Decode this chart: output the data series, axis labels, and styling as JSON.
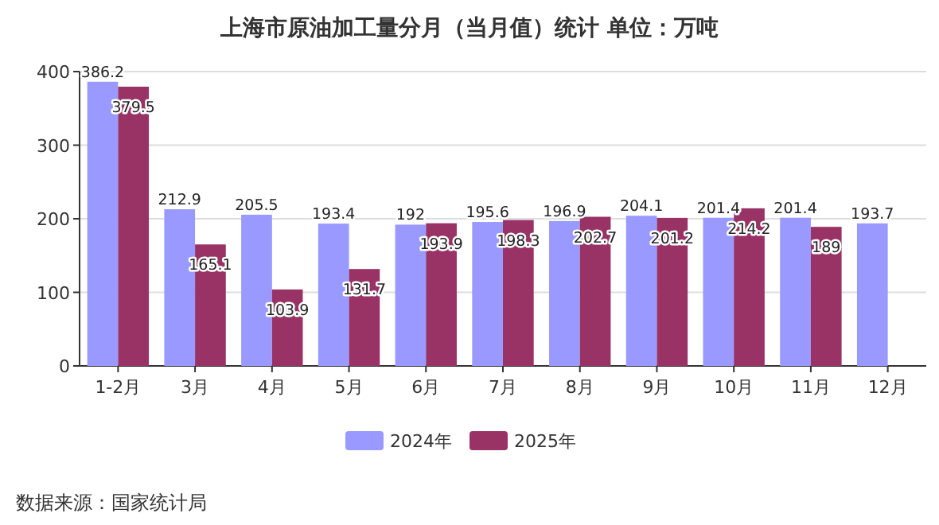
{
  "chart_data": {
    "type": "bar",
    "title": "上海市原油加工量分月（当月值）统计 单位：万吨",
    "categories": [
      "1-2月",
      "3月",
      "4月",
      "5月",
      "6月",
      "7月",
      "8月",
      "9月",
      "10月",
      "11月",
      "12月"
    ],
    "series": [
      {
        "name": "2024年",
        "color": "#9999ff",
        "values": [
          386.2,
          212.9,
          205.5,
          193.4,
          192,
          195.6,
          196.9,
          204.1,
          201.4,
          201.4,
          193.7
        ]
      },
      {
        "name": "2025年",
        "color": "#993366",
        "values": [
          379.5,
          165.1,
          103.9,
          131.7,
          193.9,
          198.3,
          202.7,
          201.2,
          214.2,
          189,
          null
        ]
      }
    ],
    "ylim": [
      0,
      400
    ],
    "yticks": [
      0,
      100,
      200,
      300,
      400
    ],
    "grid": "y",
    "legend": "bottom",
    "data_labels": true,
    "annotations": [
      "数据来源：国家统计局"
    ]
  }
}
